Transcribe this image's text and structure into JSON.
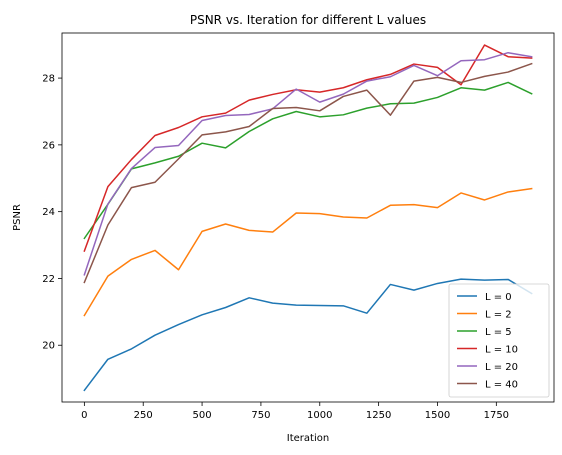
{
  "chart_data": {
    "type": "line",
    "title": "PSNR vs. Iteration for different L values",
    "xlabel": "Iteration",
    "ylabel": "PSNR",
    "xlim": [
      -95,
      1995
    ],
    "ylim": [
      18.3,
      29.35
    ],
    "xticks": [
      0,
      250,
      500,
      750,
      1000,
      1250,
      1500,
      1750
    ],
    "xtick_labels": [
      "0",
      "250",
      "500",
      "750",
      "1000",
      "1250",
      "1500",
      "1750"
    ],
    "yticks": [
      20,
      22,
      24,
      26,
      28
    ],
    "ytick_labels": [
      "20",
      "22",
      "24",
      "26",
      "28"
    ],
    "grid": false,
    "legend_position": "lower-right",
    "x": [
      0,
      100,
      200,
      300,
      400,
      500,
      600,
      700,
      800,
      900,
      1000,
      1100,
      1200,
      1300,
      1400,
      1500,
      1600,
      1700,
      1800,
      1900
    ],
    "series": [
      {
        "name": "L = 0",
        "color": "#1f77b4",
        "values": [
          18.65,
          19.58,
          19.89,
          20.3,
          20.62,
          20.91,
          21.13,
          21.42,
          21.26,
          21.2,
          21.19,
          21.18,
          20.96,
          21.82,
          21.65,
          21.85,
          21.98,
          21.95,
          21.97,
          21.55
        ]
      },
      {
        "name": "L = 2",
        "color": "#ff7f0e",
        "values": [
          20.89,
          22.07,
          22.57,
          22.84,
          22.26,
          23.41,
          23.63,
          23.44,
          23.39,
          23.96,
          23.94,
          23.84,
          23.81,
          24.19,
          24.21,
          24.12,
          24.56,
          24.35,
          24.59,
          24.69
        ]
      },
      {
        "name": "L = 5",
        "color": "#2ca02c",
        "values": [
          23.2,
          24.22,
          25.28,
          25.46,
          25.66,
          26.05,
          25.91,
          26.4,
          26.78,
          27.0,
          26.84,
          26.9,
          27.1,
          27.23,
          27.25,
          27.42,
          27.71,
          27.64,
          27.87,
          27.53
        ]
      },
      {
        "name": "L = 10",
        "color": "#d62728",
        "values": [
          22.82,
          24.75,
          25.56,
          26.28,
          26.52,
          26.84,
          26.95,
          27.34,
          27.51,
          27.65,
          27.58,
          27.71,
          27.95,
          28.11,
          28.42,
          28.32,
          27.8,
          28.99,
          28.64,
          28.6
        ]
      },
      {
        "name": "L = 20",
        "color": "#9467bd",
        "values": [
          22.11,
          24.23,
          25.29,
          25.92,
          25.98,
          26.73,
          26.88,
          26.91,
          27.08,
          27.67,
          27.28,
          27.52,
          27.91,
          28.04,
          28.38,
          28.07,
          28.52,
          28.55,
          28.76,
          28.64
        ]
      },
      {
        "name": "L = 40",
        "color": "#8c564b",
        "values": [
          21.88,
          23.6,
          24.72,
          24.88,
          25.58,
          26.3,
          26.39,
          26.55,
          27.09,
          27.12,
          27.02,
          27.45,
          27.64,
          26.89,
          27.91,
          28.02,
          27.87,
          28.05,
          28.18,
          28.43
        ]
      }
    ]
  }
}
